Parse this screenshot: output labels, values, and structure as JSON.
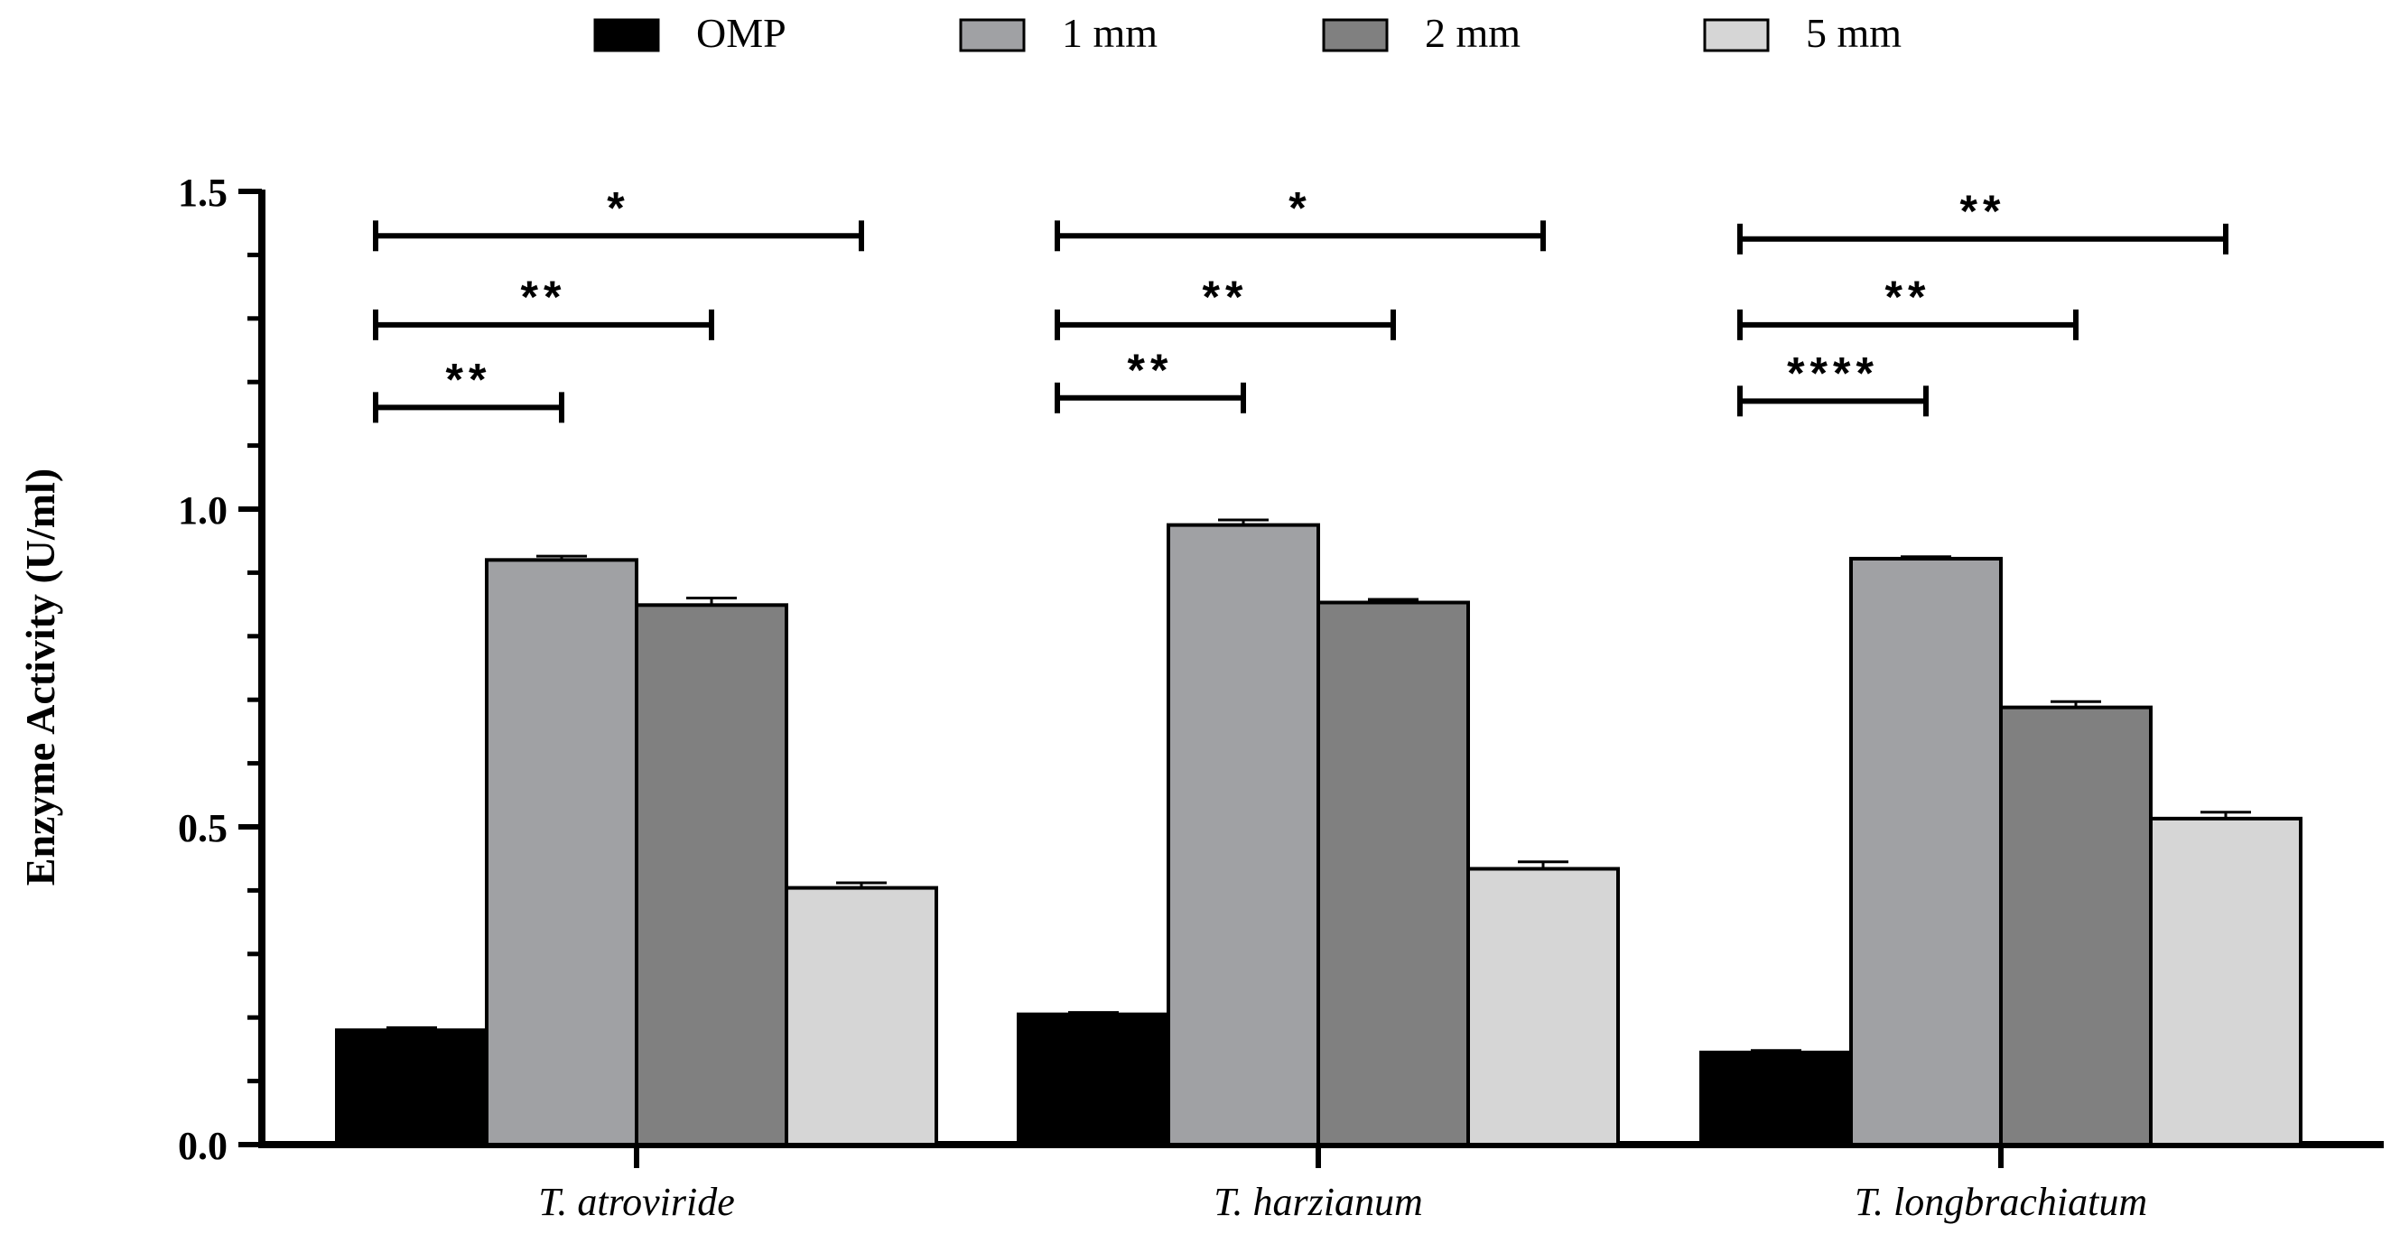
{
  "chart_data": {
    "type": "bar",
    "ylabel": "Enzyme Activity (U/ml)",
    "xlabel": "",
    "ylim": [
      0,
      1.5
    ],
    "yticks": [
      "0.0",
      "0.5",
      "1.0",
      "1.5"
    ],
    "ytick_values": [
      0,
      0.5,
      1.0,
      1.5
    ],
    "minor_ticks_per_major": 5,
    "grid": false,
    "legend_position": "top-center",
    "categories": [
      "T. atroviride",
      "T. harzianum",
      "T. longbrachiatum"
    ],
    "series": [
      {
        "name": "OMP",
        "color": "#000000",
        "values": [
          0.18,
          0.205,
          0.145
        ],
        "errors": [
          0.004,
          0.003,
          0.003
        ]
      },
      {
        "name": "1 mm",
        "color": "#a0a1a4",
        "values": [
          0.92,
          0.975,
          0.922
        ],
        "errors": [
          0.006,
          0.008,
          0.003
        ]
      },
      {
        "name": "2 mm",
        "color": "#808080",
        "values": [
          0.849,
          0.853,
          0.688
        ],
        "errors": [
          0.011,
          0.005,
          0.009
        ]
      },
      {
        "name": "5 mm",
        "color": "#d6d6d6",
        "values": [
          0.404,
          0.434,
          0.513
        ],
        "errors": [
          0.008,
          0.011,
          0.01
        ]
      }
    ],
    "significance": [
      {
        "category": 0,
        "compare": 1,
        "y": 1.16,
        "label": "**"
      },
      {
        "category": 0,
        "compare": 2,
        "y": 1.29,
        "label": "**"
      },
      {
        "category": 0,
        "compare": 3,
        "y": 1.43,
        "label": "*"
      },
      {
        "category": 1,
        "compare": 1,
        "y": 1.175,
        "label": "**"
      },
      {
        "category": 1,
        "compare": 2,
        "y": 1.29,
        "label": "**"
      },
      {
        "category": 1,
        "compare": 3,
        "y": 1.43,
        "label": "*"
      },
      {
        "category": 2,
        "compare": 1,
        "y": 1.17,
        "label": "****"
      },
      {
        "category": 2,
        "compare": 2,
        "y": 1.29,
        "label": "**"
      },
      {
        "category": 2,
        "compare": 3,
        "y": 1.425,
        "label": "**"
      }
    ]
  }
}
